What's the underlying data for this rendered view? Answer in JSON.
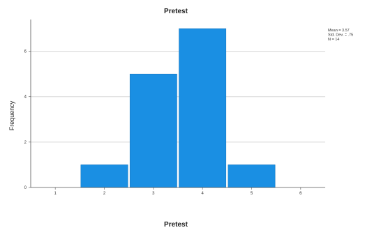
{
  "chart_data": {
    "type": "bar",
    "title": "Pretest",
    "xlabel": "Pretest",
    "ylabel": "Frequency",
    "categories": [
      "2",
      "3",
      "4",
      "5"
    ],
    "values": [
      1,
      5,
      7,
      1
    ],
    "x_ticks": [
      "1",
      "2",
      "3",
      "4",
      "5",
      "6"
    ],
    "x_range": [
      0.5,
      6.5
    ],
    "y_ticks": [
      "0",
      "2",
      "4",
      "6"
    ],
    "ylim": [
      0,
      7.4
    ],
    "grid": "horizontal",
    "bar_color": "#1a8fe3",
    "stats_box": [
      "Mean = 3.57",
      "Std. Dev. = .75",
      "N = 14"
    ]
  }
}
